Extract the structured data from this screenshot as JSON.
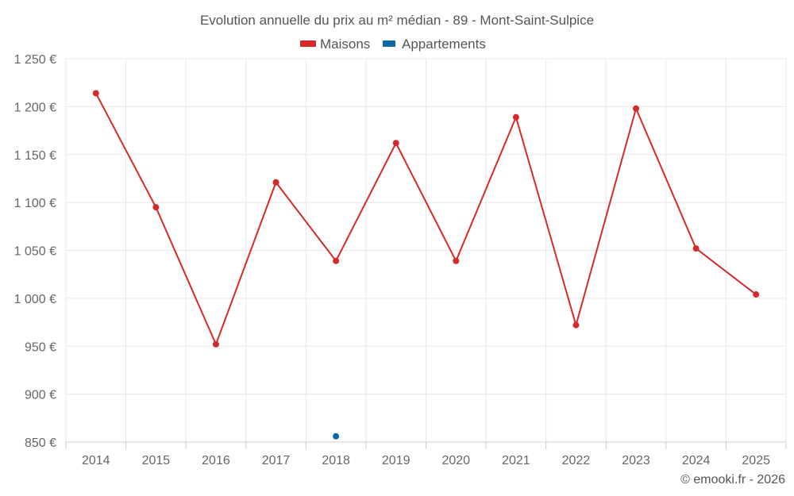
{
  "chart_data": {
    "type": "line",
    "title": "Evolution annuelle du prix au m² médian - 89 - Mont-Saint-Sulpice",
    "categories": [
      "2014",
      "2015",
      "2016",
      "2017",
      "2018",
      "2019",
      "2020",
      "2021",
      "2022",
      "2023",
      "2024",
      "2025"
    ],
    "series": [
      {
        "name": "Maisons",
        "color": "#d42a2a",
        "values": [
          1214,
          1095,
          952,
          1121,
          1039,
          1162,
          1039,
          1189,
          972,
          1198,
          1052,
          1004
        ]
      },
      {
        "name": "Appartements",
        "color": "#0a6aa8",
        "values": [
          null,
          null,
          null,
          null,
          856,
          null,
          null,
          null,
          null,
          null,
          null,
          null
        ]
      }
    ],
    "yticks": [
      "850 €",
      "900 €",
      "950 €",
      "1 000 €",
      "1 050 €",
      "1 100 €",
      "1 150 €",
      "1 200 €",
      "1 250 €"
    ],
    "ylim": [
      850,
      1250
    ],
    "grid": true,
    "legend": "top-center",
    "credit": "© emooki.fr - 2026"
  }
}
